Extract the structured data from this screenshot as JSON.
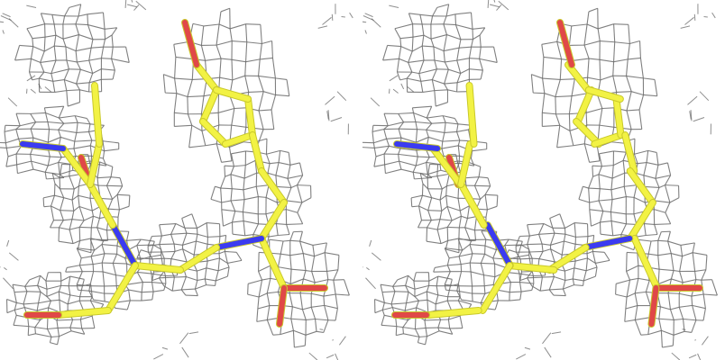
{
  "figure": {
    "kind": "stereo-pair",
    "panels": [
      "left-eye",
      "right-eye"
    ],
    "render_style": "sticks with electron-density mesh"
  },
  "colors": {
    "background": "#ffffff",
    "mesh": "#6b6b6b",
    "carbon": "#f2f244",
    "carbon_shade": "#c9c92a",
    "nitrogen": "#3b3bf0",
    "oxygen": "#e04848",
    "neighbor_wire": "#444444"
  }
}
